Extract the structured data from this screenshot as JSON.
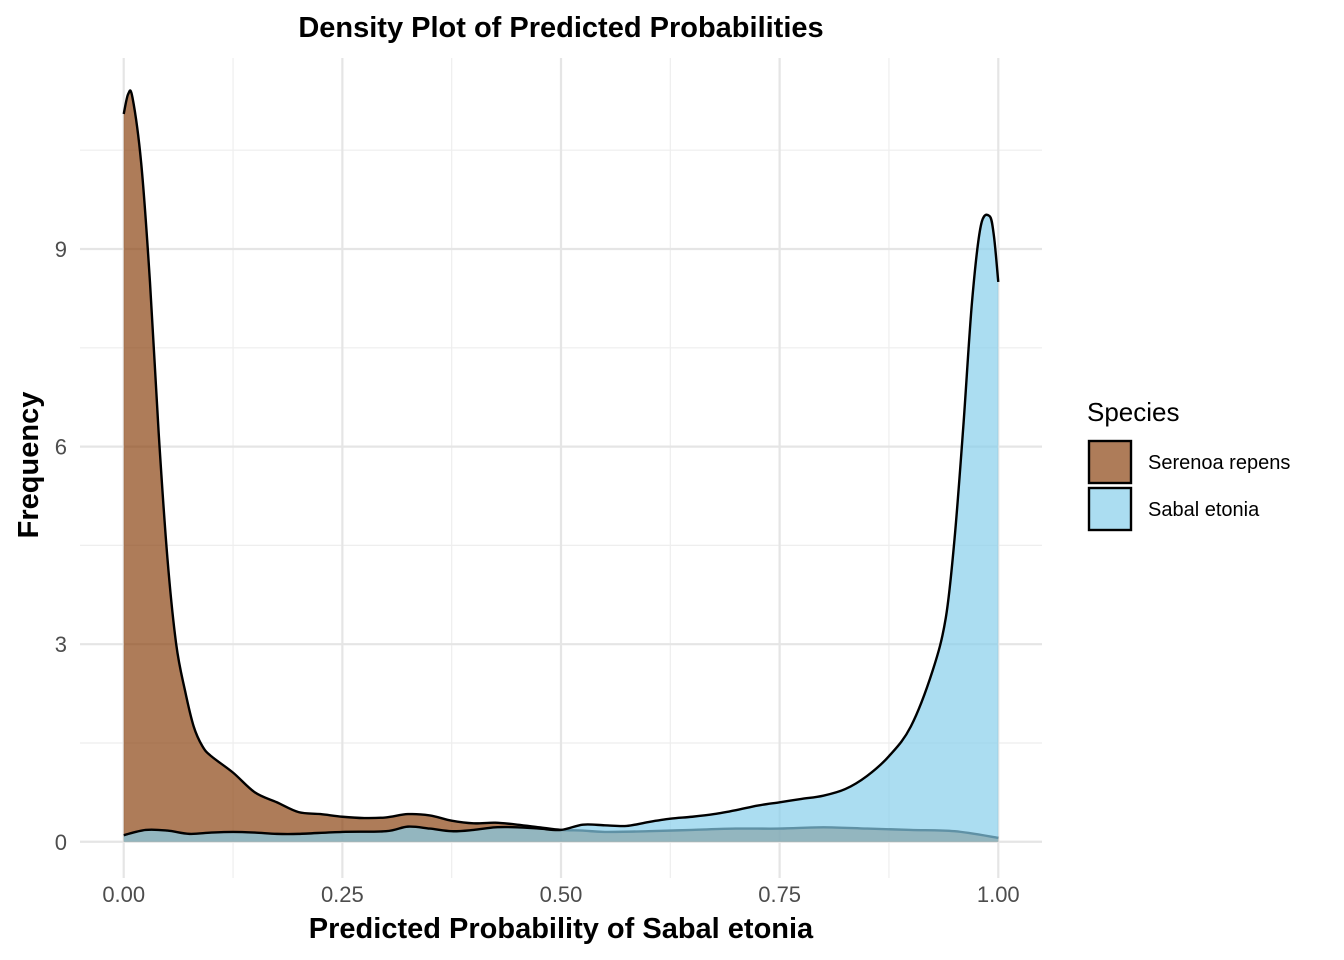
{
  "chart_data": {
    "type": "area",
    "title": "Density Plot of Predicted Probabilities",
    "xlabel": "Predicted Probability of Sabal etonia",
    "ylabel": "Frequency",
    "xlim": [
      -0.05,
      1.05
    ],
    "ylim": [
      -0.55,
      11.9
    ],
    "xticks": [
      0.0,
      0.25,
      0.5,
      0.75,
      1.0
    ],
    "xtick_labels": [
      "0.00",
      "0.25",
      "0.50",
      "0.75",
      "1.00"
    ],
    "yticks": [
      0,
      3,
      6,
      9
    ],
    "ytick_labels": [
      "0",
      "3",
      "6",
      "9"
    ],
    "grid": true,
    "legend": {
      "title": "Species",
      "position": "right"
    },
    "series": [
      {
        "name": "Serenoa repens",
        "color": "#8B4513",
        "x": [
          0.0,
          0.005,
          0.01,
          0.02,
          0.03,
          0.04,
          0.05,
          0.06,
          0.07,
          0.08,
          0.09,
          0.1,
          0.125,
          0.15,
          0.175,
          0.2,
          0.225,
          0.25,
          0.275,
          0.3,
          0.325,
          0.35,
          0.375,
          0.4,
          0.425,
          0.45,
          0.475,
          0.5,
          0.525,
          0.55,
          0.6,
          0.65,
          0.7,
          0.75,
          0.8,
          0.85,
          0.9,
          0.95,
          1.0
        ],
        "y": [
          11.05,
          11.35,
          11.3,
          10.3,
          8.5,
          6.2,
          4.3,
          3.0,
          2.3,
          1.75,
          1.45,
          1.3,
          1.05,
          0.75,
          0.6,
          0.45,
          0.42,
          0.38,
          0.36,
          0.37,
          0.42,
          0.4,
          0.32,
          0.28,
          0.29,
          0.26,
          0.22,
          0.18,
          0.17,
          0.15,
          0.16,
          0.18,
          0.2,
          0.2,
          0.22,
          0.2,
          0.18,
          0.16,
          0.06
        ]
      },
      {
        "name": "Sabal etonia",
        "color": "#87CEEB",
        "x": [
          0.0,
          0.025,
          0.05,
          0.075,
          0.1,
          0.125,
          0.15,
          0.175,
          0.2,
          0.25,
          0.3,
          0.325,
          0.35,
          0.375,
          0.4,
          0.425,
          0.45,
          0.475,
          0.5,
          0.525,
          0.55,
          0.575,
          0.6,
          0.625,
          0.65,
          0.675,
          0.7,
          0.725,
          0.75,
          0.775,
          0.8,
          0.825,
          0.85,
          0.875,
          0.9,
          0.925,
          0.94,
          0.95,
          0.96,
          0.97,
          0.98,
          0.99,
          0.995,
          1.0
        ],
        "y": [
          0.1,
          0.18,
          0.17,
          0.12,
          0.14,
          0.15,
          0.14,
          0.12,
          0.12,
          0.15,
          0.16,
          0.23,
          0.2,
          0.16,
          0.18,
          0.22,
          0.22,
          0.2,
          0.18,
          0.26,
          0.25,
          0.24,
          0.3,
          0.35,
          0.38,
          0.42,
          0.48,
          0.55,
          0.6,
          0.65,
          0.7,
          0.8,
          1.0,
          1.3,
          1.75,
          2.6,
          3.4,
          4.6,
          6.3,
          8.2,
          9.35,
          9.5,
          9.2,
          8.5
        ]
      }
    ]
  }
}
